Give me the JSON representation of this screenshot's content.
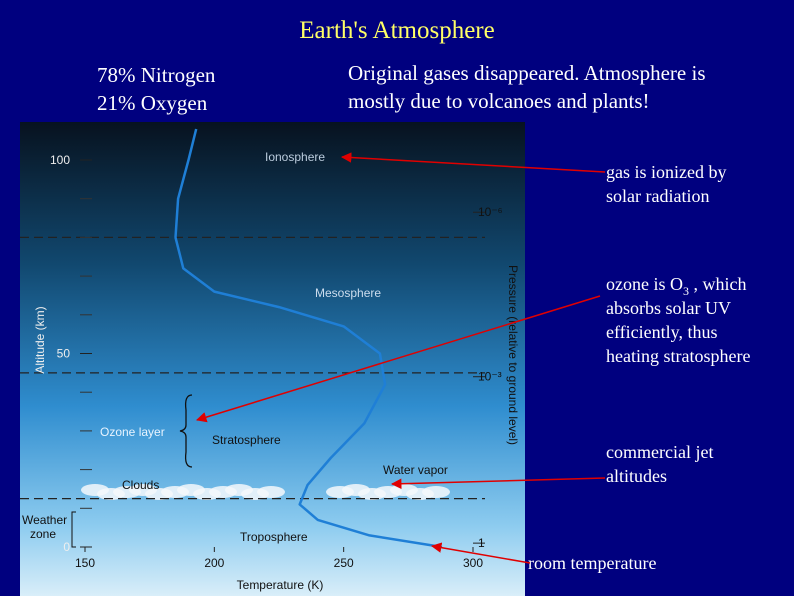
{
  "slide": {
    "title": "Earth's Atmosphere",
    "left_text": [
      "78% Nitrogen",
      "21% Oxygen"
    ],
    "right_text": [
      "Original gases disappeared.  Atmosphere is",
      "mostly due to volcanoes and plants!"
    ],
    "callouts": [
      {
        "lines": [
          "gas is ionized by",
          "solar radiation"
        ]
      },
      {
        "first_line": {
          "text": "ozone is O",
          "sub": "3",
          "after": " , which"
        },
        "lines": [
          "absorbs solar UV",
          "efficiently, thus",
          "heating stratosphere"
        ]
      },
      {
        "lines": [
          "commercial jet",
          "altitudes"
        ]
      },
      {
        "lines": [
          "room temperature"
        ]
      }
    ]
  },
  "figure": {
    "x_label": "Temperature (K)",
    "y_label": "Altitude (km)",
    "y2_label": "Pressure (relative to ground level)",
    "xlim": [
      150,
      300
    ],
    "ylim": [
      0,
      110
    ],
    "xticks": [
      150,
      200,
      250,
      300
    ],
    "yticks": [
      0,
      50,
      100
    ],
    "y_minor_ticks": [
      10,
      20,
      30,
      40,
      60,
      70,
      80,
      90
    ],
    "y2ticks": [
      {
        "value": 1,
        "label": "1"
      },
      {
        "value": 44,
        "label": "10⁻³"
      },
      {
        "value": 86.5,
        "label": "10⁻⁶"
      }
    ],
    "dashed_altitudes": [
      12.5,
      45,
      80
    ],
    "curve": {
      "temperature": [
        288,
        260,
        240,
        233,
        236,
        245,
        258,
        266,
        264,
        250,
        225,
        200,
        188,
        185,
        186,
        190,
        193
      ],
      "altitude": [
        0,
        3,
        7,
        11,
        16,
        23,
        32,
        42,
        50,
        57,
        62,
        66,
        72,
        80,
        90,
        100,
        108
      ]
    },
    "labels": {
      "ionosphere": "Ionosphere",
      "mesosphere": "Mesosphere",
      "ozone": "Ozone layer",
      "stratosphere": "Stratosphere",
      "clouds": "Clouds",
      "water_vapor": "Water vapor",
      "troposphere": "Troposphere",
      "weather": "Weather",
      "zone": "zone"
    }
  }
}
